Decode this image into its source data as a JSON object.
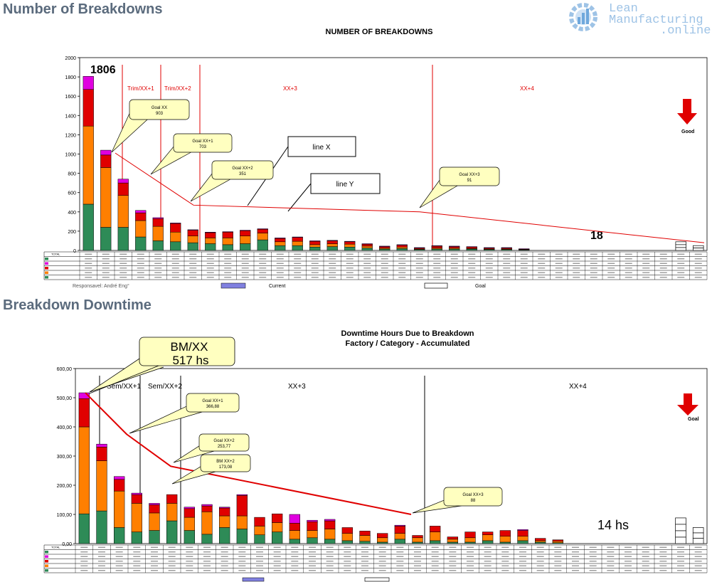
{
  "logo": {
    "line1": "Lean",
    "line2": "Manufacturing",
    "line3": ".online"
  },
  "sections": {
    "breakdowns": "Number of Breakdowns",
    "downtime": "Breakdown Downtime"
  },
  "chart_data": [
    {
      "type": "bar",
      "title": "NUMBER OF BREAKDOWNS",
      "ylim": [
        0,
        2000
      ],
      "yticks": [
        "0",
        "200",
        "400",
        "600",
        "800",
        "1000",
        "1200",
        "1400",
        "1600",
        "1800",
        "2000"
      ],
      "categories_count": 36,
      "series": [
        {
          "color": "#2e8b57",
          "values": [
            480,
            240,
            240,
            140,
            100,
            90,
            80,
            70,
            60,
            70,
            110,
            50,
            50,
            35,
            40,
            35,
            25,
            15,
            20,
            10,
            15,
            15,
            15,
            10,
            10,
            5
          ]
        },
        {
          "color": "#ff7f00",
          "values": [
            810,
            620,
            330,
            170,
            150,
            100,
            70,
            60,
            70,
            80,
            70,
            40,
            45,
            25,
            30,
            30,
            20,
            10,
            15,
            5,
            10,
            10,
            5,
            5,
            5,
            3
          ]
        },
        {
          "color": "#e00000",
          "values": [
            380,
            130,
            130,
            80,
            80,
            90,
            60,
            55,
            60,
            55,
            40,
            35,
            40,
            35,
            30,
            25,
            20,
            15,
            20,
            10,
            20,
            15,
            15,
            10,
            10,
            5
          ]
        },
        {
          "color": "#e000e0",
          "values": [
            136,
            50,
            40,
            25,
            10,
            5,
            5,
            5,
            5,
            5,
            5,
            5,
            5,
            5,
            5,
            5,
            5,
            5,
            5,
            5,
            5,
            5,
            5,
            5,
            5,
            5
          ]
        }
      ],
      "annotations": {
        "peak": "1806",
        "last": "18",
        "good": "Good",
        "line_x": "line X",
        "line_y": "line Y"
      },
      "periods": [
        "Trim/XX+1",
        "Trim/XX+2",
        "XX+3",
        "XX+4"
      ],
      "goals": [
        {
          "title": "Goal XX",
          "value": "903"
        },
        {
          "title": "Goal XX+1",
          "value": "703"
        },
        {
          "title": "Goal XX+2",
          "value": "351"
        },
        {
          "title": "Goal XX+3",
          "value": "91"
        }
      ],
      "goal_line": [
        1010,
        470,
        400,
        80
      ],
      "table_labels": {
        "row0": "TOTAL",
        "responsible": "Responsavel: André Eng°",
        "current": "Current",
        "goal": "Goal"
      }
    },
    {
      "type": "bar",
      "title": "Downtime Hours Due to Breakdown",
      "subtitle": "Factory / Category - Accumulated",
      "ylim": [
        0,
        600
      ],
      "yticks": [
        "0,00",
        "100,00",
        "200,00",
        "300,00",
        "400,00",
        "500,00",
        "600,00"
      ],
      "categories_count": 36,
      "series": [
        {
          "color": "#2e8b57",
          "values": [
            102,
            112,
            55,
            40,
            45,
            78,
            45,
            32,
            55,
            50,
            30,
            40,
            15,
            20,
            15,
            10,
            8,
            5,
            15,
            5,
            10,
            5,
            5,
            10,
            5,
            10,
            5,
            3
          ]
        },
        {
          "color": "#ff7f00",
          "values": [
            298,
            172,
            125,
            98,
            60,
            60,
            45,
            77,
            40,
            45,
            30,
            32,
            30,
            25,
            35,
            25,
            20,
            15,
            20,
            15,
            30,
            10,
            15,
            20,
            20,
            15,
            5,
            5
          ]
        },
        {
          "color": "#e00000",
          "values": [
            97,
            47,
            40,
            30,
            28,
            30,
            30,
            20,
            27,
            70,
            30,
            30,
            25,
            30,
            28,
            20,
            15,
            15,
            25,
            8,
            20,
            8,
            20,
            10,
            20,
            20,
            8,
            5
          ]
        },
        {
          "color": "#e000e0",
          "values": [
            20,
            10,
            10,
            5,
            5,
            0,
            5,
            5,
            3,
            3,
            0,
            0,
            30,
            5,
            5,
            0,
            0,
            0,
            3,
            0,
            0,
            0,
            0,
            0,
            0,
            3,
            0,
            0
          ]
        }
      ],
      "annotations": {
        "bm_title": "BM/XX",
        "bm_value": "517 hs",
        "last": "14 hs",
        "goal": "Goal"
      },
      "periods": [
        "Sem/XX+1",
        "Sem/XX+2",
        "XX+3",
        "XX+4"
      ],
      "goals": [
        {
          "title": "Goal XX+1",
          "value": "366,88"
        },
        {
          "title": "Goal XX+2",
          "value": "253,77"
        },
        {
          "title": "BM XX+2",
          "value": "173,08"
        },
        {
          "title": "Goal XX+3",
          "value": "88"
        }
      ],
      "goal_line": [
        517,
        375,
        265,
        100
      ],
      "table_labels": {
        "row0": "TOTAL"
      }
    }
  ]
}
